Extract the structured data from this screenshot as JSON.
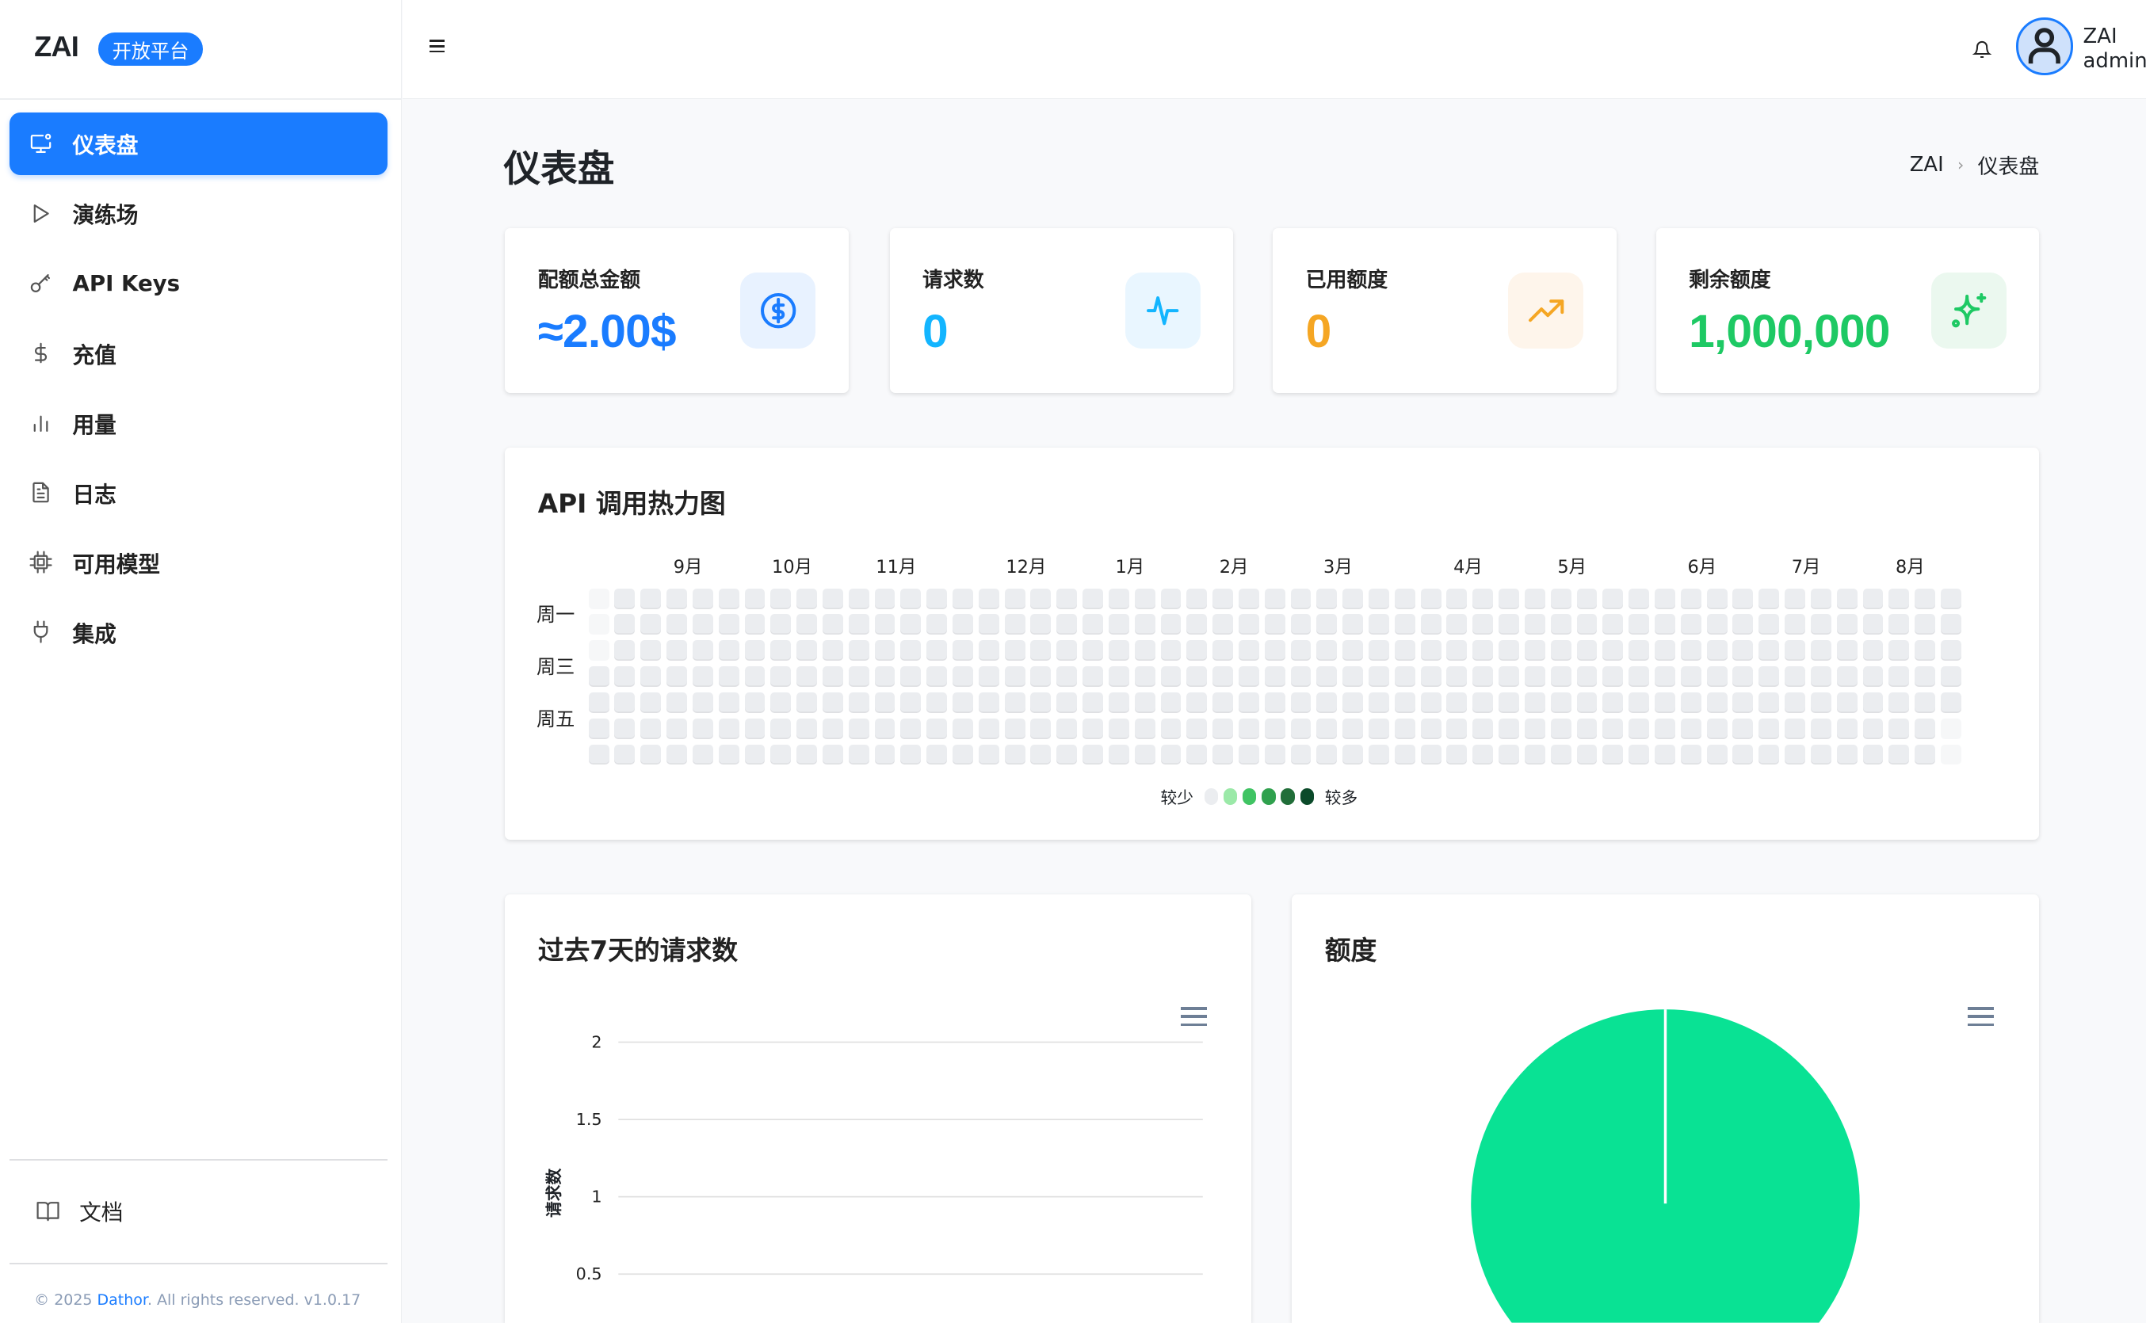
{
  "brand": {
    "logo": "ZAI",
    "badge": "开放平台"
  },
  "sidebar": {
    "items": [
      {
        "label": "仪表盘",
        "icon": "monitor-icon",
        "active": true
      },
      {
        "label": "演练场",
        "icon": "play-icon"
      },
      {
        "label": "API Keys",
        "icon": "key-icon"
      },
      {
        "label": "充值",
        "icon": "dollar-icon"
      },
      {
        "label": "用量",
        "icon": "bar-chart-icon"
      },
      {
        "label": "日志",
        "icon": "file-text-icon"
      },
      {
        "label": "可用模型",
        "icon": "cpu-icon"
      },
      {
        "label": "集成",
        "icon": "plug-icon"
      }
    ],
    "docs": {
      "label": "文档",
      "icon": "book-open-icon"
    },
    "footer": {
      "prefix": "© 2025 ",
      "link": "Dathor",
      "suffix": ". All rights reserved. v1.0.17"
    }
  },
  "header": {
    "menu_icon": "hamburger-icon",
    "bell_icon": "bell-icon",
    "user": {
      "name": "ZAI",
      "role": "admin"
    }
  },
  "page": {
    "title": "仪表盘",
    "breadcrumb": [
      "ZAI",
      "仪表盘"
    ]
  },
  "stats": [
    {
      "label": "配额总金额",
      "value": "≈2.00$",
      "color": "#1a7cff",
      "icon": "dollar-circle-icon",
      "icon_bg": "#e8f2ff"
    },
    {
      "label": "请求数",
      "value": "0",
      "color": "#13b5ff",
      "icon": "activity-icon",
      "icon_bg": "#e9f6ff"
    },
    {
      "label": "已用额度",
      "value": "0",
      "color": "#f5a623",
      "icon": "trending-up-icon",
      "icon_bg": "#fef5eb"
    },
    {
      "label": "剩余额度",
      "value": "1,000,000",
      "color": "#1ec964",
      "icon": "sparkle-icon",
      "icon_bg": "#ebf8ef"
    }
  ],
  "heatmap": {
    "title": "API 调用热力图",
    "months": [
      "9月",
      "10月",
      "11月",
      "12月",
      "1月",
      "2月",
      "3月",
      "4月",
      "5月",
      "6月",
      "7月",
      "8月"
    ],
    "weekdays": [
      "周一",
      "周三",
      "周五"
    ],
    "legend": {
      "less": "较少",
      "more": "较多",
      "colors": [
        "#ebedf0",
        "#9be9a8",
        "#40c463",
        "#30a14e",
        "#216e39",
        "#0b4a2a"
      ]
    },
    "all_daily_counts": 0
  },
  "chart_data": [
    {
      "type": "line",
      "title": "过去7天的请求数",
      "ylabel": "请求数",
      "yticks": [
        "2",
        "1.5",
        "1",
        "0.5"
      ],
      "ylim": [
        0,
        2
      ],
      "grid": true,
      "series": []
    },
    {
      "type": "pie",
      "title": "额度",
      "slices": [
        {
          "value": 1000000,
          "color": "#09e294"
        }
      ]
    }
  ]
}
